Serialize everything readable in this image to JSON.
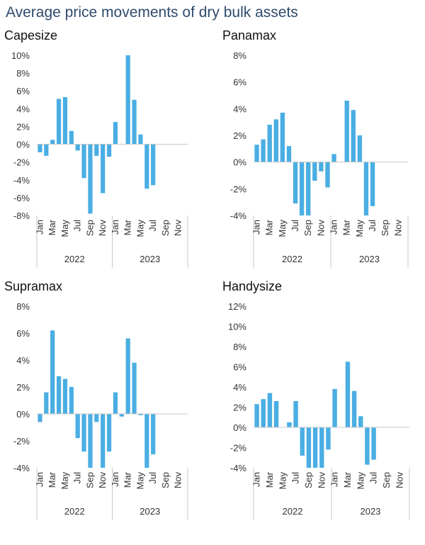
{
  "title": "Average price movements of dry bulk assets",
  "chart_data": [
    {
      "type": "bar",
      "title": "Capesize",
      "x": [
        "Jan",
        "Feb",
        "Mar",
        "Apr",
        "May",
        "Jun",
        "Jul",
        "Aug",
        "Sep",
        "Oct",
        "Nov",
        "Dec",
        "Jan",
        "Feb",
        "Mar",
        "Apr",
        "May",
        "Jun",
        "Jul",
        "Aug",
        "Sep",
        "Oct",
        "Nov",
        "Dec"
      ],
      "tick_labels": [
        "Jan",
        "",
        "Mar",
        "",
        "May",
        "",
        "Jul",
        "",
        "Sep",
        "",
        "Nov",
        "",
        "Jan",
        "",
        "Mar",
        "",
        "May",
        "",
        "Jul",
        "",
        "Sep",
        "",
        "Nov",
        ""
      ],
      "groups": [
        {
          "label": "2022",
          "from": 0,
          "to": 11
        },
        {
          "label": "2023",
          "from": 12,
          "to": 23
        }
      ],
      "values": [
        -0.9,
        -1.3,
        0.5,
        5.1,
        5.3,
        1.5,
        -0.7,
        -3.8,
        -7.8,
        -1.3,
        -5.5,
        -1.4,
        2.5,
        null,
        10.0,
        5.0,
        1.1,
        -5.0,
        -4.6,
        null,
        null,
        null,
        null,
        null
      ],
      "yticks": [
        "10%",
        "8%",
        "6%",
        "4%",
        "2%",
        "0%",
        "-2%",
        "-4%",
        "-6%",
        "-8%"
      ],
      "ylim": [
        -8,
        10
      ]
    },
    {
      "type": "bar",
      "title": "Panamax",
      "x": [
        "Jan",
        "Feb",
        "Mar",
        "Apr",
        "May",
        "Jun",
        "Jul",
        "Aug",
        "Sep",
        "Oct",
        "Nov",
        "Dec",
        "Jan",
        "Feb",
        "Mar",
        "Apr",
        "May",
        "Jun",
        "Jul",
        "Aug",
        "Sep",
        "Oct",
        "Nov",
        "Dec"
      ],
      "tick_labels": [
        "Jan",
        "",
        "Mar",
        "",
        "May",
        "",
        "Jul",
        "",
        "Sep",
        "",
        "Nov",
        "",
        "Jan",
        "",
        "Mar",
        "",
        "May",
        "",
        "Jul",
        "",
        "Sep",
        "",
        "Nov",
        ""
      ],
      "groups": [
        {
          "label": "2022",
          "from": 0,
          "to": 11
        },
        {
          "label": "2023",
          "from": 12,
          "to": 23
        }
      ],
      "values": [
        1.3,
        1.7,
        2.8,
        3.2,
        3.7,
        1.2,
        -3.1,
        -4.0,
        -4.0,
        -1.4,
        -0.7,
        -1.9,
        0.6,
        null,
        4.6,
        3.9,
        2.0,
        -4.0,
        -3.3,
        null,
        null,
        null,
        null,
        null
      ],
      "yticks": [
        "8%",
        "6%",
        "4%",
        "2%",
        "0%",
        "-2%",
        "-4%"
      ],
      "ylim": [
        -4,
        8
      ]
    },
    {
      "type": "bar",
      "title": "Supramax",
      "x": [
        "Jan",
        "Feb",
        "Mar",
        "Apr",
        "May",
        "Jun",
        "Jul",
        "Aug",
        "Sep",
        "Oct",
        "Nov",
        "Dec",
        "Jan",
        "Feb",
        "Mar",
        "Apr",
        "May",
        "Jun",
        "Jul",
        "Aug",
        "Sep",
        "Oct",
        "Nov",
        "Dec"
      ],
      "tick_labels": [
        "Jan",
        "",
        "Mar",
        "",
        "May",
        "",
        "Jul",
        "",
        "Sep",
        "",
        "Nov",
        "",
        "Jan",
        "",
        "Mar",
        "",
        "May",
        "",
        "Jul",
        "",
        "Sep",
        "",
        "Nov",
        ""
      ],
      "groups": [
        {
          "label": "2022",
          "from": 0,
          "to": 11
        },
        {
          "label": "2023",
          "from": 12,
          "to": 23
        }
      ],
      "values": [
        -0.6,
        1.6,
        6.2,
        2.8,
        2.6,
        2.0,
        -1.8,
        -2.8,
        -4.0,
        -0.6,
        -4.0,
        -2.8,
        1.6,
        -0.2,
        5.6,
        3.8,
        -0.1,
        -4.0,
        -3.0,
        null,
        null,
        null,
        null,
        null
      ],
      "yticks": [
        "8%",
        "6%",
        "4%",
        "2%",
        "0%",
        "-2%",
        "-4%"
      ],
      "ylim": [
        -4,
        8
      ]
    },
    {
      "type": "bar",
      "title": "Handysize",
      "x": [
        "Jan",
        "Feb",
        "Mar",
        "Apr",
        "May",
        "Jun",
        "Jul",
        "Aug",
        "Sep",
        "Oct",
        "Nov",
        "Dec",
        "Jan",
        "Feb",
        "Mar",
        "Apr",
        "May",
        "Jun",
        "Jul",
        "Aug",
        "Sep",
        "Oct",
        "Nov",
        "Dec"
      ],
      "tick_labels": [
        "Jan",
        "",
        "Mar",
        "",
        "May",
        "",
        "Jul",
        "",
        "Sep",
        "",
        "Nov",
        "",
        "Jan",
        "",
        "Mar",
        "",
        "May",
        "",
        "Jul",
        "",
        "Sep",
        "",
        "Nov",
        ""
      ],
      "groups": [
        {
          "label": "2022",
          "from": 0,
          "to": 11
        },
        {
          "label": "2023",
          "from": 12,
          "to": 23
        }
      ],
      "values": [
        2.3,
        2.8,
        3.4,
        2.6,
        null,
        0.5,
        2.6,
        -2.8,
        -4.0,
        -4.0,
        -4.0,
        -2.2,
        3.8,
        null,
        6.5,
        3.6,
        1.1,
        -3.7,
        -3.2,
        null,
        null,
        null,
        null,
        null
      ],
      "yticks": [
        "12%",
        "10%",
        "8%",
        "6%",
        "4%",
        "2%",
        "0%",
        "-2%",
        "-4%"
      ],
      "ylim": [
        -4,
        12
      ]
    }
  ],
  "colors": {
    "bar": "#4aaee3",
    "axis": "#c8c8c8",
    "title": "#2f4b6e",
    "text": "#333333"
  }
}
